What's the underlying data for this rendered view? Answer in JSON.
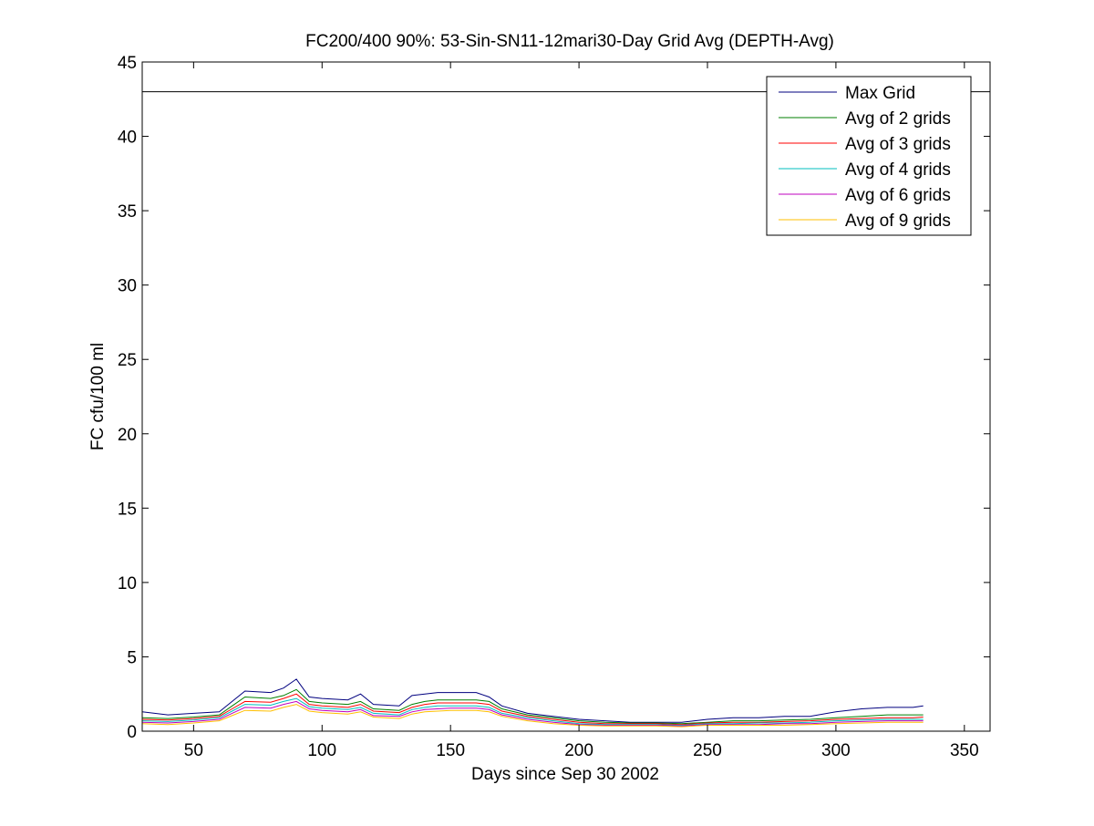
{
  "chart_data": {
    "type": "line",
    "title": "FC200/400 90%: 53-Sin-SN11-12mari30-Day Grid Avg (DEPTH-Avg)",
    "xlabel": "Days since Sep 30 2002",
    "ylabel": "FC cfu/100 ml",
    "xlim": [
      30,
      360
    ],
    "ylim": [
      0,
      45
    ],
    "xticks": [
      50,
      100,
      150,
      200,
      250,
      300,
      350
    ],
    "yticks": [
      0,
      5,
      10,
      15,
      20,
      25,
      30,
      35,
      40,
      45
    ],
    "grid": false,
    "legend_position": "top-right",
    "reference_line": {
      "y": 43,
      "color": "#000000"
    },
    "x": [
      30,
      40,
      50,
      60,
      65,
      70,
      80,
      85,
      90,
      95,
      100,
      110,
      115,
      120,
      130,
      135,
      140,
      145,
      150,
      160,
      165,
      170,
      180,
      190,
      200,
      210,
      220,
      230,
      240,
      250,
      260,
      270,
      280,
      290,
      300,
      310,
      320,
      330,
      334
    ],
    "series": [
      {
        "name": "Max Grid",
        "color": "#00007f",
        "values": [
          1.3,
          1.1,
          1.2,
          1.3,
          2.0,
          2.7,
          2.6,
          2.9,
          3.5,
          2.3,
          2.2,
          2.1,
          2.5,
          1.8,
          1.7,
          2.4,
          2.5,
          2.6,
          2.6,
          2.6,
          2.3,
          1.7,
          1.2,
          1.0,
          0.8,
          0.7,
          0.6,
          0.6,
          0.6,
          0.8,
          0.9,
          0.9,
          1.0,
          1.0,
          1.3,
          1.5,
          1.6,
          1.6,
          1.7
        ]
      },
      {
        "name": "Avg of 2 grids",
        "color": "#007f00",
        "values": [
          0.9,
          0.85,
          0.95,
          1.1,
          1.7,
          2.3,
          2.2,
          2.4,
          2.8,
          2.0,
          1.9,
          1.8,
          2.0,
          1.5,
          1.4,
          1.8,
          2.0,
          2.1,
          2.1,
          2.1,
          2.0,
          1.5,
          1.1,
          0.9,
          0.7,
          0.6,
          0.55,
          0.55,
          0.5,
          0.6,
          0.7,
          0.7,
          0.75,
          0.8,
          0.9,
          1.0,
          1.1,
          1.1,
          1.1
        ]
      },
      {
        "name": "Avg of 3 grids",
        "color": "#ff0000",
        "values": [
          0.8,
          0.75,
          0.85,
          1.0,
          1.5,
          2.0,
          1.95,
          2.2,
          2.5,
          1.8,
          1.7,
          1.6,
          1.8,
          1.35,
          1.25,
          1.6,
          1.8,
          1.9,
          1.9,
          1.9,
          1.8,
          1.35,
          1.0,
          0.8,
          0.6,
          0.5,
          0.5,
          0.5,
          0.45,
          0.55,
          0.6,
          0.6,
          0.65,
          0.7,
          0.8,
          0.85,
          0.9,
          0.9,
          0.95
        ]
      },
      {
        "name": "Avg of 4 grids",
        "color": "#00bfbf",
        "values": [
          0.7,
          0.65,
          0.75,
          0.9,
          1.35,
          1.8,
          1.75,
          2.0,
          2.2,
          1.65,
          1.55,
          1.45,
          1.6,
          1.2,
          1.1,
          1.45,
          1.6,
          1.7,
          1.7,
          1.7,
          1.6,
          1.2,
          0.9,
          0.7,
          0.5,
          0.45,
          0.45,
          0.45,
          0.4,
          0.5,
          0.5,
          0.55,
          0.55,
          0.6,
          0.7,
          0.75,
          0.8,
          0.8,
          0.8
        ]
      },
      {
        "name": "Avg of 6 grids",
        "color": "#bf00bf",
        "values": [
          0.6,
          0.55,
          0.65,
          0.8,
          1.2,
          1.6,
          1.55,
          1.8,
          2.0,
          1.5,
          1.4,
          1.3,
          1.45,
          1.05,
          1.0,
          1.3,
          1.45,
          1.5,
          1.55,
          1.55,
          1.45,
          1.1,
          0.8,
          0.6,
          0.45,
          0.4,
          0.4,
          0.4,
          0.35,
          0.45,
          0.45,
          0.45,
          0.5,
          0.5,
          0.6,
          0.65,
          0.7,
          0.7,
          0.7
        ]
      },
      {
        "name": "Avg of 9 grids",
        "color": "#ffbf00",
        "values": [
          0.5,
          0.45,
          0.55,
          0.7,
          1.05,
          1.4,
          1.35,
          1.6,
          1.8,
          1.35,
          1.25,
          1.15,
          1.3,
          0.95,
          0.85,
          1.15,
          1.3,
          1.35,
          1.4,
          1.4,
          1.3,
          1.0,
          0.7,
          0.5,
          0.4,
          0.35,
          0.35,
          0.35,
          0.3,
          0.4,
          0.4,
          0.4,
          0.4,
          0.45,
          0.5,
          0.55,
          0.6,
          0.6,
          0.6
        ]
      }
    ]
  }
}
